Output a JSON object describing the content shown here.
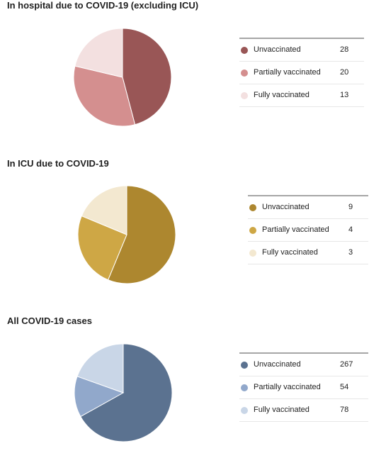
{
  "chart_data": [
    {
      "type": "pie",
      "title": "In hospital due to COVID-19 (excluding ICU)",
      "categories": [
        "Unvaccinated",
        "Partially vaccinated",
        "Fully vaccinated"
      ],
      "values": [
        28,
        20,
        13
      ],
      "colors": [
        "#995656",
        "#d48f8f",
        "#f3e0e0"
      ],
      "legend_position": "right"
    },
    {
      "type": "pie",
      "title": "In ICU due to COVID-19",
      "categories": [
        "Unvaccinated",
        "Partially vaccinated",
        "Fully vaccinated"
      ],
      "values": [
        9,
        4,
        3
      ],
      "colors": [
        "#ad872f",
        "#cea745",
        "#f3e8d0"
      ],
      "legend_position": "right"
    },
    {
      "type": "pie",
      "title": "All COVID-19 cases",
      "categories": [
        "Unvaccinated",
        "Partially vaccinated",
        "Fully vaccinated"
      ],
      "values": [
        267,
        54,
        78
      ],
      "colors": [
        "#5b7290",
        "#91a8cb",
        "#c9d6e7"
      ],
      "legend_position": "right"
    }
  ]
}
